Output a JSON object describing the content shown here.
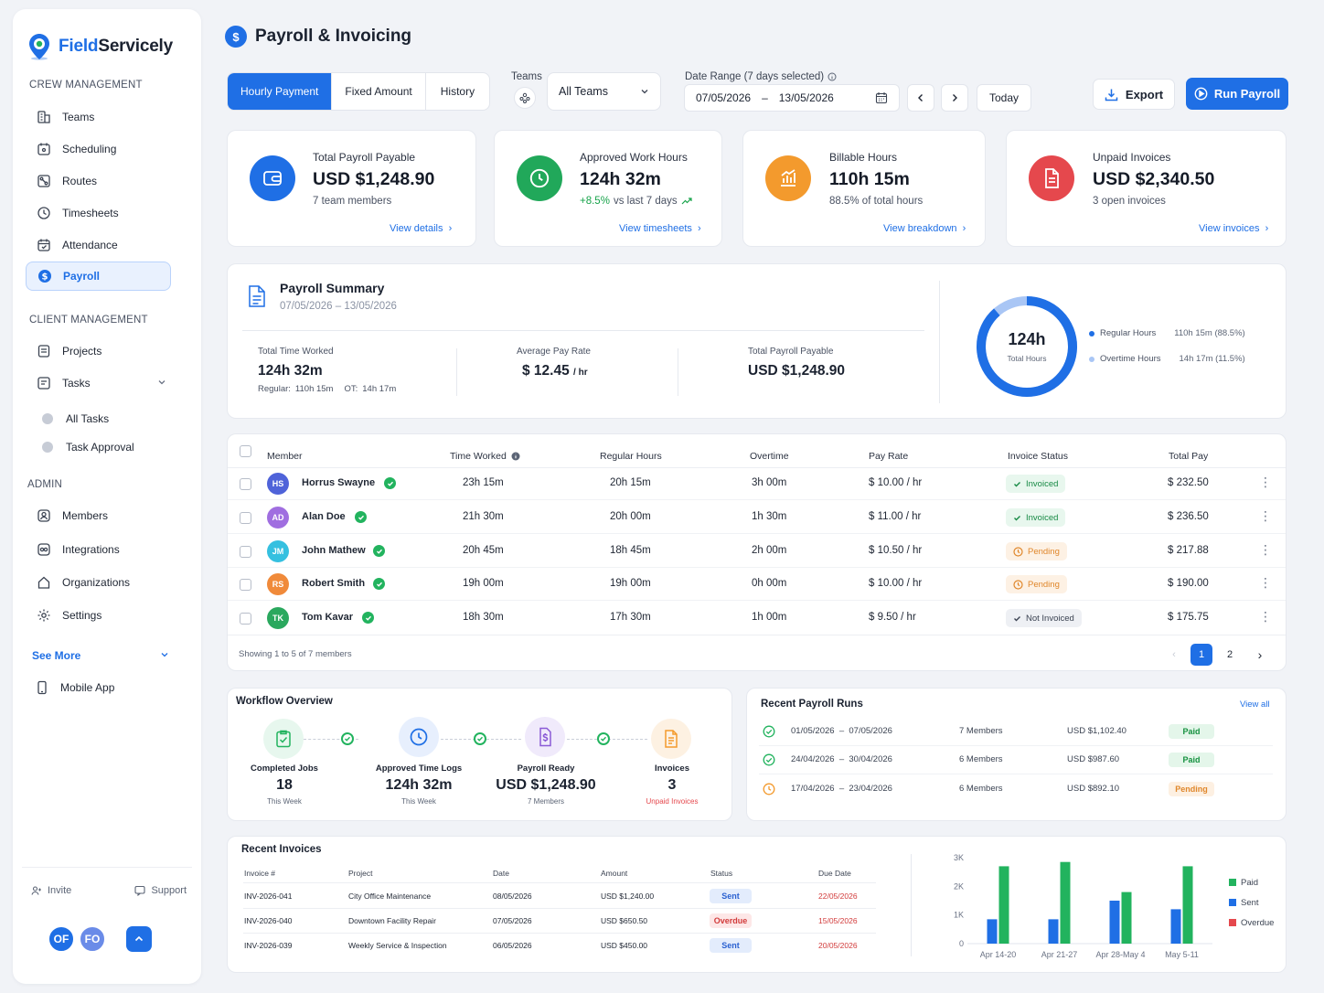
{
  "brand": {
    "name_prefix": "Field",
    "name_suffix": "Servicely"
  },
  "sidebar": {
    "crew_title": "CREW MANAGEMENT",
    "crew_items": [
      "Teams",
      "Scheduling",
      "Routes",
      "Timesheets",
      "Attendance",
      "Payroll"
    ],
    "client_title": "CLIENT MANAGEMENT",
    "client_items": [
      "Projects",
      "Tasks"
    ],
    "task_subitems": [
      "All Tasks",
      "Task Approval"
    ],
    "admin_title": "ADMIN",
    "admin_items": [
      "Members",
      "Integrations",
      "Organizations",
      "Settings"
    ],
    "see_more": "See More",
    "mobile_app": "Mobile App",
    "invite": "Invite",
    "support": "Support",
    "avatars": [
      "OF",
      "FO"
    ]
  },
  "header": {
    "title": "Payroll & Invoicing",
    "tabs": [
      "Hourly Payment",
      "Fixed Amount",
      "History"
    ],
    "teams_label": "Teams",
    "teams_value": "All Teams",
    "date_range_label": "Date Range (7 days selected)",
    "date_start": "07/05/2026",
    "date_sep": "–",
    "date_end": "13/05/2026",
    "today": "Today",
    "export": "Export",
    "run_payroll": "Run Payroll"
  },
  "stats": [
    {
      "label": "Total Payroll Payable",
      "value": "USD $1,248.90",
      "sub": "7 team members",
      "link": "View details",
      "color": "#1f6fe5"
    },
    {
      "label": "Approved Work Hours",
      "value": "124h 32m",
      "sub_highlight": "+8.5%",
      "sub": "vs last 7 days",
      "link": "View timesheets",
      "color": "#21a85a"
    },
    {
      "label": "Billable Hours",
      "value": "110h 15m",
      "sub": "88.5% of total hours",
      "link": "View breakdown",
      "color": "#f39a2d"
    },
    {
      "label": "Unpaid Invoices",
      "value": "USD $2,340.50",
      "sub": "3 open invoices",
      "link": "View invoices",
      "color": "#e5484d"
    }
  ],
  "summary": {
    "title": "Payroll Summary",
    "date": "07/05/2026  –  13/05/2026",
    "total_time_label": "Total Time Worked",
    "total_time_value": "124h 32m",
    "regular_label": "Regular:",
    "regular_value": "110h 15m",
    "ot_label": "OT:",
    "ot_value": "14h 17m",
    "avg_rate_label": "Average Pay Rate",
    "avg_rate_value": "$ 12.45",
    "avg_rate_unit": "/ hr",
    "total_pay_label": "Total Payroll Payable",
    "total_pay_value": "USD $1,248.90",
    "donut_value": "124h",
    "donut_label": "Total Hours",
    "donut_regular_fraction": 0.885,
    "legend": [
      {
        "name": "Regular Hours",
        "value": "110h 15m (88.5%)",
        "color": "#1f6fe5"
      },
      {
        "name": "Overtime Hours",
        "value": "14h 17m (11.5%)",
        "color": "#a9c6f5"
      }
    ]
  },
  "table": {
    "headers": [
      "Member",
      "Time Worked",
      "Regular Hours",
      "Overtime",
      "Pay Rate",
      "Invoice Status",
      "Total Pay"
    ],
    "rows": [
      {
        "initials": "HS",
        "name": "Horrus Swayne",
        "time": "23h 15m",
        "regular": "20h 15m",
        "overtime": "3h 00m",
        "rate": "$ 10.00 / hr",
        "status": "Invoiced",
        "status_type": "inv",
        "total": "$ 232.50",
        "color": "#4f63d9"
      },
      {
        "initials": "AD",
        "name": "Alan Doe",
        "time": "21h 30m",
        "regular": "20h 00m",
        "overtime": "1h 30m",
        "rate": "$ 11.00 / hr",
        "status": "Invoiced",
        "status_type": "inv",
        "total": "$ 236.50",
        "color": "#a06ee0"
      },
      {
        "initials": "JM",
        "name": "John Mathew",
        "time": "20h 45m",
        "regular": "18h 45m",
        "overtime": "2h 00m",
        "rate": "$ 10.50 / hr",
        "status": "Pending",
        "status_type": "pen",
        "total": "$ 217.88",
        "color": "#35c0e0"
      },
      {
        "initials": "RS",
        "name": "Robert Smith",
        "time": "19h 00m",
        "regular": "19h 00m",
        "overtime": "0h 00m",
        "rate": "$ 10.00 / hr",
        "status": "Pending",
        "status_type": "pen",
        "total": "$ 190.00",
        "color": "#f08a3a"
      },
      {
        "initials": "TK",
        "name": "Tom Kavar",
        "time": "18h 30m",
        "regular": "17h 30m",
        "overtime": "1h 00m",
        "rate": "$ 9.50 / hr",
        "status": "Not Invoiced",
        "status_type": "not",
        "total": "$ 175.75",
        "color": "#2aa85e"
      }
    ],
    "showing": "Showing 1 to 5 of 7 members",
    "pages": [
      "1",
      "2"
    ]
  },
  "workflow": {
    "title": "Workflow Overview",
    "steps": [
      {
        "label": "Completed Jobs",
        "value": "18",
        "sub": "This Week",
        "color": "#22b35e",
        "bg": "#e7f7ee"
      },
      {
        "label": "Approved Time Logs",
        "value": "124h 32m",
        "sub": "This Week",
        "color": "#1f6fe5",
        "bg": "#e7effd"
      },
      {
        "label": "Payroll Ready",
        "value": "USD $1,248.90",
        "sub": "7 Members",
        "color": "#8a5ad6",
        "bg": "#f0eafb"
      },
      {
        "label": "Invoices",
        "value": "3",
        "sub": "Unpaid Invoices",
        "color": "#f39a2d",
        "bg": "#fdf1e2"
      }
    ]
  },
  "recent_runs": {
    "title": "Recent Payroll Runs",
    "view_all": "View all",
    "rows": [
      {
        "range": "01/05/2026  –  07/05/2026",
        "members": "7 Members",
        "amount": "USD $1,102.40",
        "status": "Paid",
        "type": "paid"
      },
      {
        "range": "24/04/2026  –  30/04/2026",
        "members": "6 Members",
        "amount": "USD $987.60",
        "status": "Paid",
        "type": "paid"
      },
      {
        "range": "17/04/2026  –  23/04/2026",
        "members": "6 Members",
        "amount": "USD $892.10",
        "status": "Pending",
        "type": "pend"
      }
    ]
  },
  "recent_invoices": {
    "title": "Recent Invoices",
    "headers": [
      "Invoice #",
      "Project",
      "Date",
      "Amount",
      "Status",
      "Due Date"
    ],
    "rows": [
      {
        "id": "INV-2026-041",
        "project": "City Office Maintenance",
        "date": "08/05/2026",
        "amount": "USD $1,240.00",
        "status": "Sent",
        "type": "sent",
        "due": "22/05/2026"
      },
      {
        "id": "INV-2026-040",
        "project": "Downtown Facility Repair",
        "date": "07/05/2026",
        "amount": "USD $650.50",
        "status": "Overdue",
        "type": "over",
        "due": "15/05/2026"
      },
      {
        "id": "INV-2026-039",
        "project": "Weekly Service & Inspection",
        "date": "06/05/2026",
        "amount": "USD $450.00",
        "status": "Sent",
        "type": "sent",
        "due": "20/05/2026"
      }
    ]
  },
  "chart_data": {
    "type": "bar",
    "categories": [
      "Apr 14-20",
      "Apr 21-27",
      "Apr 28-May 4",
      "May 5-11"
    ],
    "series": [
      {
        "name": "Sent",
        "values": [
          850,
          850,
          1500,
          1200
        ],
        "color": "#1f6fe5"
      },
      {
        "name": "Paid",
        "values": [
          2700,
          2850,
          1800,
          2700
        ],
        "color": "#22b35e"
      }
    ],
    "legend": [
      {
        "name": "Paid",
        "color": "#22b35e"
      },
      {
        "name": "Sent",
        "color": "#1f6fe5"
      },
      {
        "name": "Overdue",
        "color": "#e5484d"
      }
    ],
    "yticks": [
      "0",
      "1K",
      "2K",
      "3K"
    ],
    "ylim": [
      0,
      3000
    ]
  }
}
